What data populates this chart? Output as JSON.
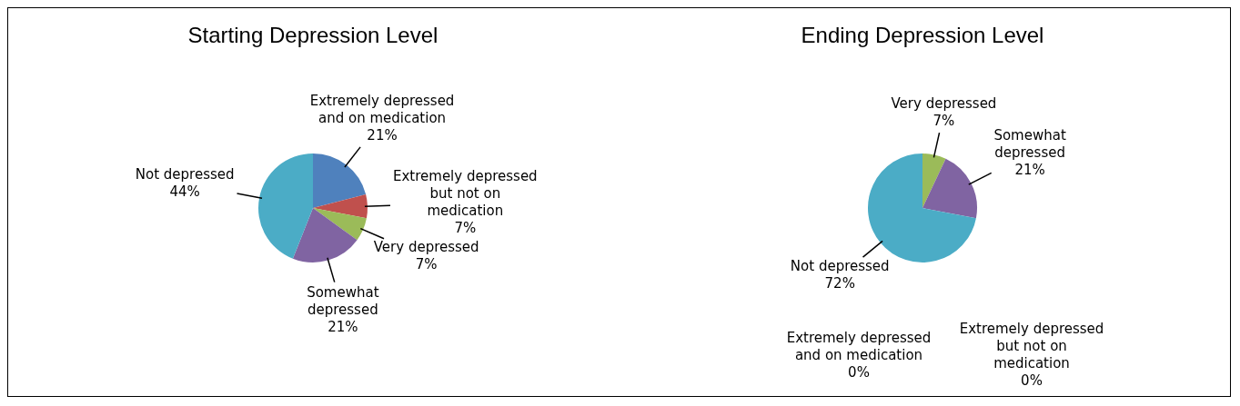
{
  "chart_data": [
    {
      "type": "pie",
      "title": "Starting Depression Level",
      "categories": [
        "Extremely depressed and on medication",
        "Extremely depressed but not on medication",
        "Very depressed",
        "Somewhat depressed",
        "Not depressed"
      ],
      "values": [
        21,
        7,
        7,
        21,
        44
      ],
      "value_labels": [
        "21%",
        "7%",
        "7%",
        "21%",
        "44%"
      ],
      "colors": [
        "#4f81bd",
        "#c0504d",
        "#9bbb59",
        "#8064a2",
        "#4bacc6"
      ],
      "legend": false
    },
    {
      "type": "pie",
      "title": "Ending Depression Level",
      "categories": [
        "Extremely depressed and on medication",
        "Extremely depressed but not on medication",
        "Very depressed",
        "Somewhat depressed",
        "Not depressed"
      ],
      "values": [
        0,
        0,
        7,
        21,
        72
      ],
      "value_labels": [
        "0%",
        "0%",
        "7%",
        "21%",
        "72%"
      ],
      "colors": [
        "#4f81bd",
        "#c0504d",
        "#9bbb59",
        "#8064a2",
        "#4bacc6"
      ],
      "legend": false
    }
  ]
}
